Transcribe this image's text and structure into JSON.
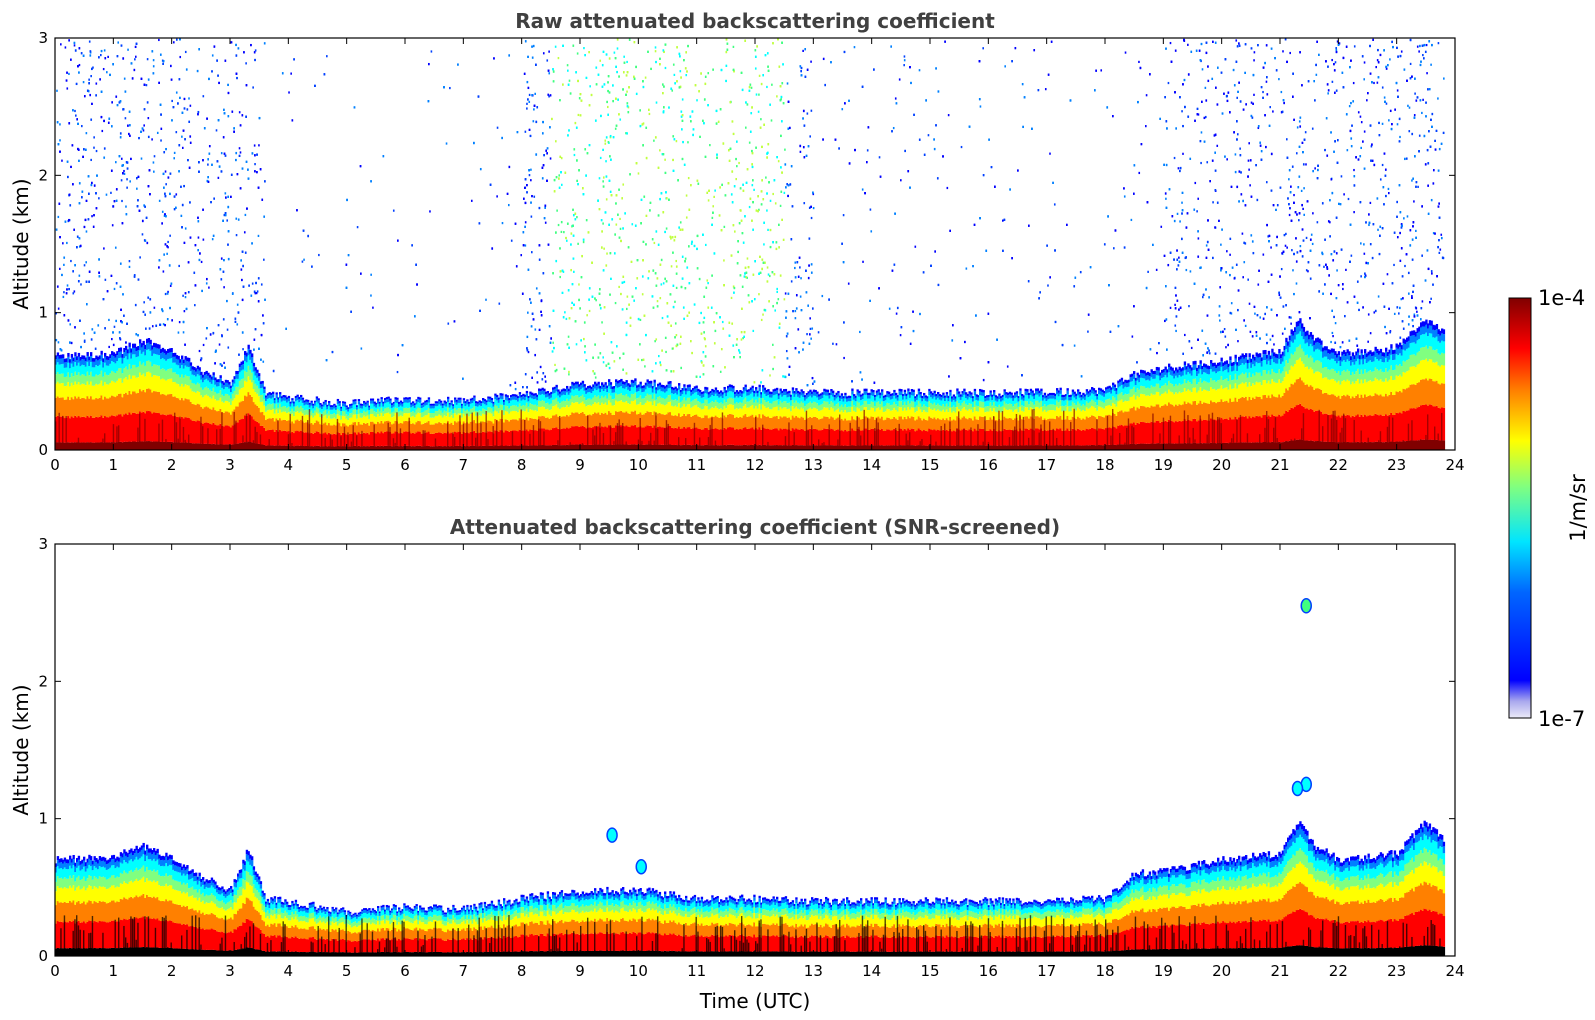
{
  "chart_data": [
    {
      "type": "heatmap",
      "title": "Raw attenuated backscattering coefficient",
      "xlabel": "",
      "ylabel": "Altitude (km)",
      "xlim": [
        0,
        24
      ],
      "ylim": [
        0,
        3
      ],
      "x_ticks": [
        "0",
        "1",
        "2",
        "3",
        "4",
        "5",
        "6",
        "7",
        "8",
        "9",
        "10",
        "11",
        "12",
        "13",
        "14",
        "15",
        "16",
        "17",
        "18",
        "19",
        "20",
        "21",
        "22",
        "23",
        "24"
      ],
      "y_ticks": [
        "0",
        "1",
        "2",
        "3"
      ],
      "layer_top_km": {
        "x": [
          0,
          1,
          1.5,
          2,
          2.5,
          3,
          3.3,
          3.6,
          4,
          5,
          6,
          7,
          8,
          9,
          10,
          11,
          12,
          13,
          14,
          15,
          16,
          17,
          18,
          18.5,
          19,
          20,
          21,
          21.3,
          21.6,
          22,
          23,
          23.5,
          23.8
        ],
        "y": [
          0.68,
          0.7,
          0.8,
          0.72,
          0.58,
          0.48,
          0.75,
          0.42,
          0.38,
          0.34,
          0.37,
          0.36,
          0.4,
          0.48,
          0.5,
          0.45,
          0.45,
          0.42,
          0.42,
          0.42,
          0.42,
          0.42,
          0.44,
          0.55,
          0.6,
          0.65,
          0.72,
          0.95,
          0.8,
          0.7,
          0.75,
          0.95,
          0.85
        ]
      },
      "scatter_above_layer": true,
      "grid": false
    },
    {
      "type": "heatmap",
      "title": "Attenuated backscattering coefficient (SNR-screened)",
      "xlabel": "Time (UTC)",
      "ylabel": "Altitude (km)",
      "xlim": [
        0,
        24
      ],
      "ylim": [
        0,
        3
      ],
      "x_ticks": [
        "0",
        "1",
        "2",
        "3",
        "4",
        "5",
        "6",
        "7",
        "8",
        "9",
        "10",
        "11",
        "12",
        "13",
        "14",
        "15",
        "16",
        "17",
        "18",
        "19",
        "20",
        "21",
        "22",
        "23",
        "24"
      ],
      "y_ticks": [
        "0",
        "1",
        "2",
        "3"
      ],
      "layer_top_km": {
        "x": [
          0,
          1,
          1.5,
          2,
          2.5,
          3,
          3.3,
          3.6,
          4,
          5,
          6,
          7,
          8,
          9,
          10,
          11,
          12,
          13,
          14,
          15,
          16,
          17,
          18,
          18.5,
          19,
          20,
          21,
          21.3,
          21.6,
          22,
          23,
          23.5,
          23.8
        ],
        "y": [
          0.7,
          0.72,
          0.8,
          0.72,
          0.58,
          0.48,
          0.78,
          0.42,
          0.4,
          0.32,
          0.36,
          0.34,
          0.42,
          0.47,
          0.48,
          0.42,
          0.42,
          0.4,
          0.4,
          0.4,
          0.4,
          0.4,
          0.42,
          0.6,
          0.62,
          0.7,
          0.75,
          0.98,
          0.8,
          0.7,
          0.75,
          0.98,
          0.85
        ]
      },
      "isolated_features_km": [
        [
          21.45,
          2.55
        ],
        [
          21.45,
          1.25
        ],
        [
          21.3,
          1.22
        ],
        [
          9.55,
          0.88
        ],
        [
          10.05,
          0.65
        ]
      ],
      "scatter_above_layer": false,
      "grid": false
    }
  ],
  "colorbar": {
    "label": "1/m/sr",
    "max_label": "1e-4",
    "min_label": "1e-7",
    "colormap": "jet",
    "colors": [
      "#e8e8f8",
      "#9999ee",
      "#0000ff",
      "#0080ff",
      "#00ffff",
      "#80ff80",
      "#ffff00",
      "#ff8000",
      "#ff0000",
      "#800000"
    ]
  }
}
